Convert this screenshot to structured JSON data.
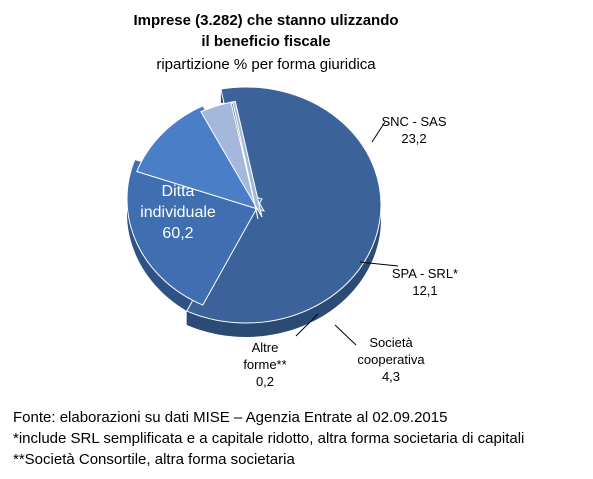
{
  "chart_data": {
    "type": "pie",
    "title_lines": [
      "Imprese (3.282) che stanno ulizzando",
      "il beneficio fiscale"
    ],
    "subtitle": "ripartizione %  per forma giuridica",
    "slices": [
      {
        "name_lines": [
          "Ditta",
          "individuale"
        ],
        "value": 60.2,
        "value_label": "60,2",
        "color": "#3c6399"
      },
      {
        "name_lines": [
          "SNC - SAS"
        ],
        "value": 23.2,
        "value_label": "23,2",
        "color": "#3f6fb0"
      },
      {
        "name_lines": [
          "SPA - SRL*"
        ],
        "value": 12.1,
        "value_label": "12,1",
        "color": "#4a7ec7"
      },
      {
        "name_lines": [
          "Società",
          "cooperativa"
        ],
        "value": 4.3,
        "value_label": "4,3",
        "color": "#a3b8da"
      },
      {
        "name_lines": [
          "Altre",
          "forme**"
        ],
        "value": 0.2,
        "value_label": "0,2",
        "color": "#4b5560"
      }
    ]
  },
  "notes": {
    "source": "Fonte: elaborazioni su dati MISE – Agenzia Entrate al 02.09.2015",
    "note1": "*include SRL semplificata e a capitale ridotto, altra forma societaria di capitali",
    "note2": "**Società Consortile, altra forma societaria"
  }
}
